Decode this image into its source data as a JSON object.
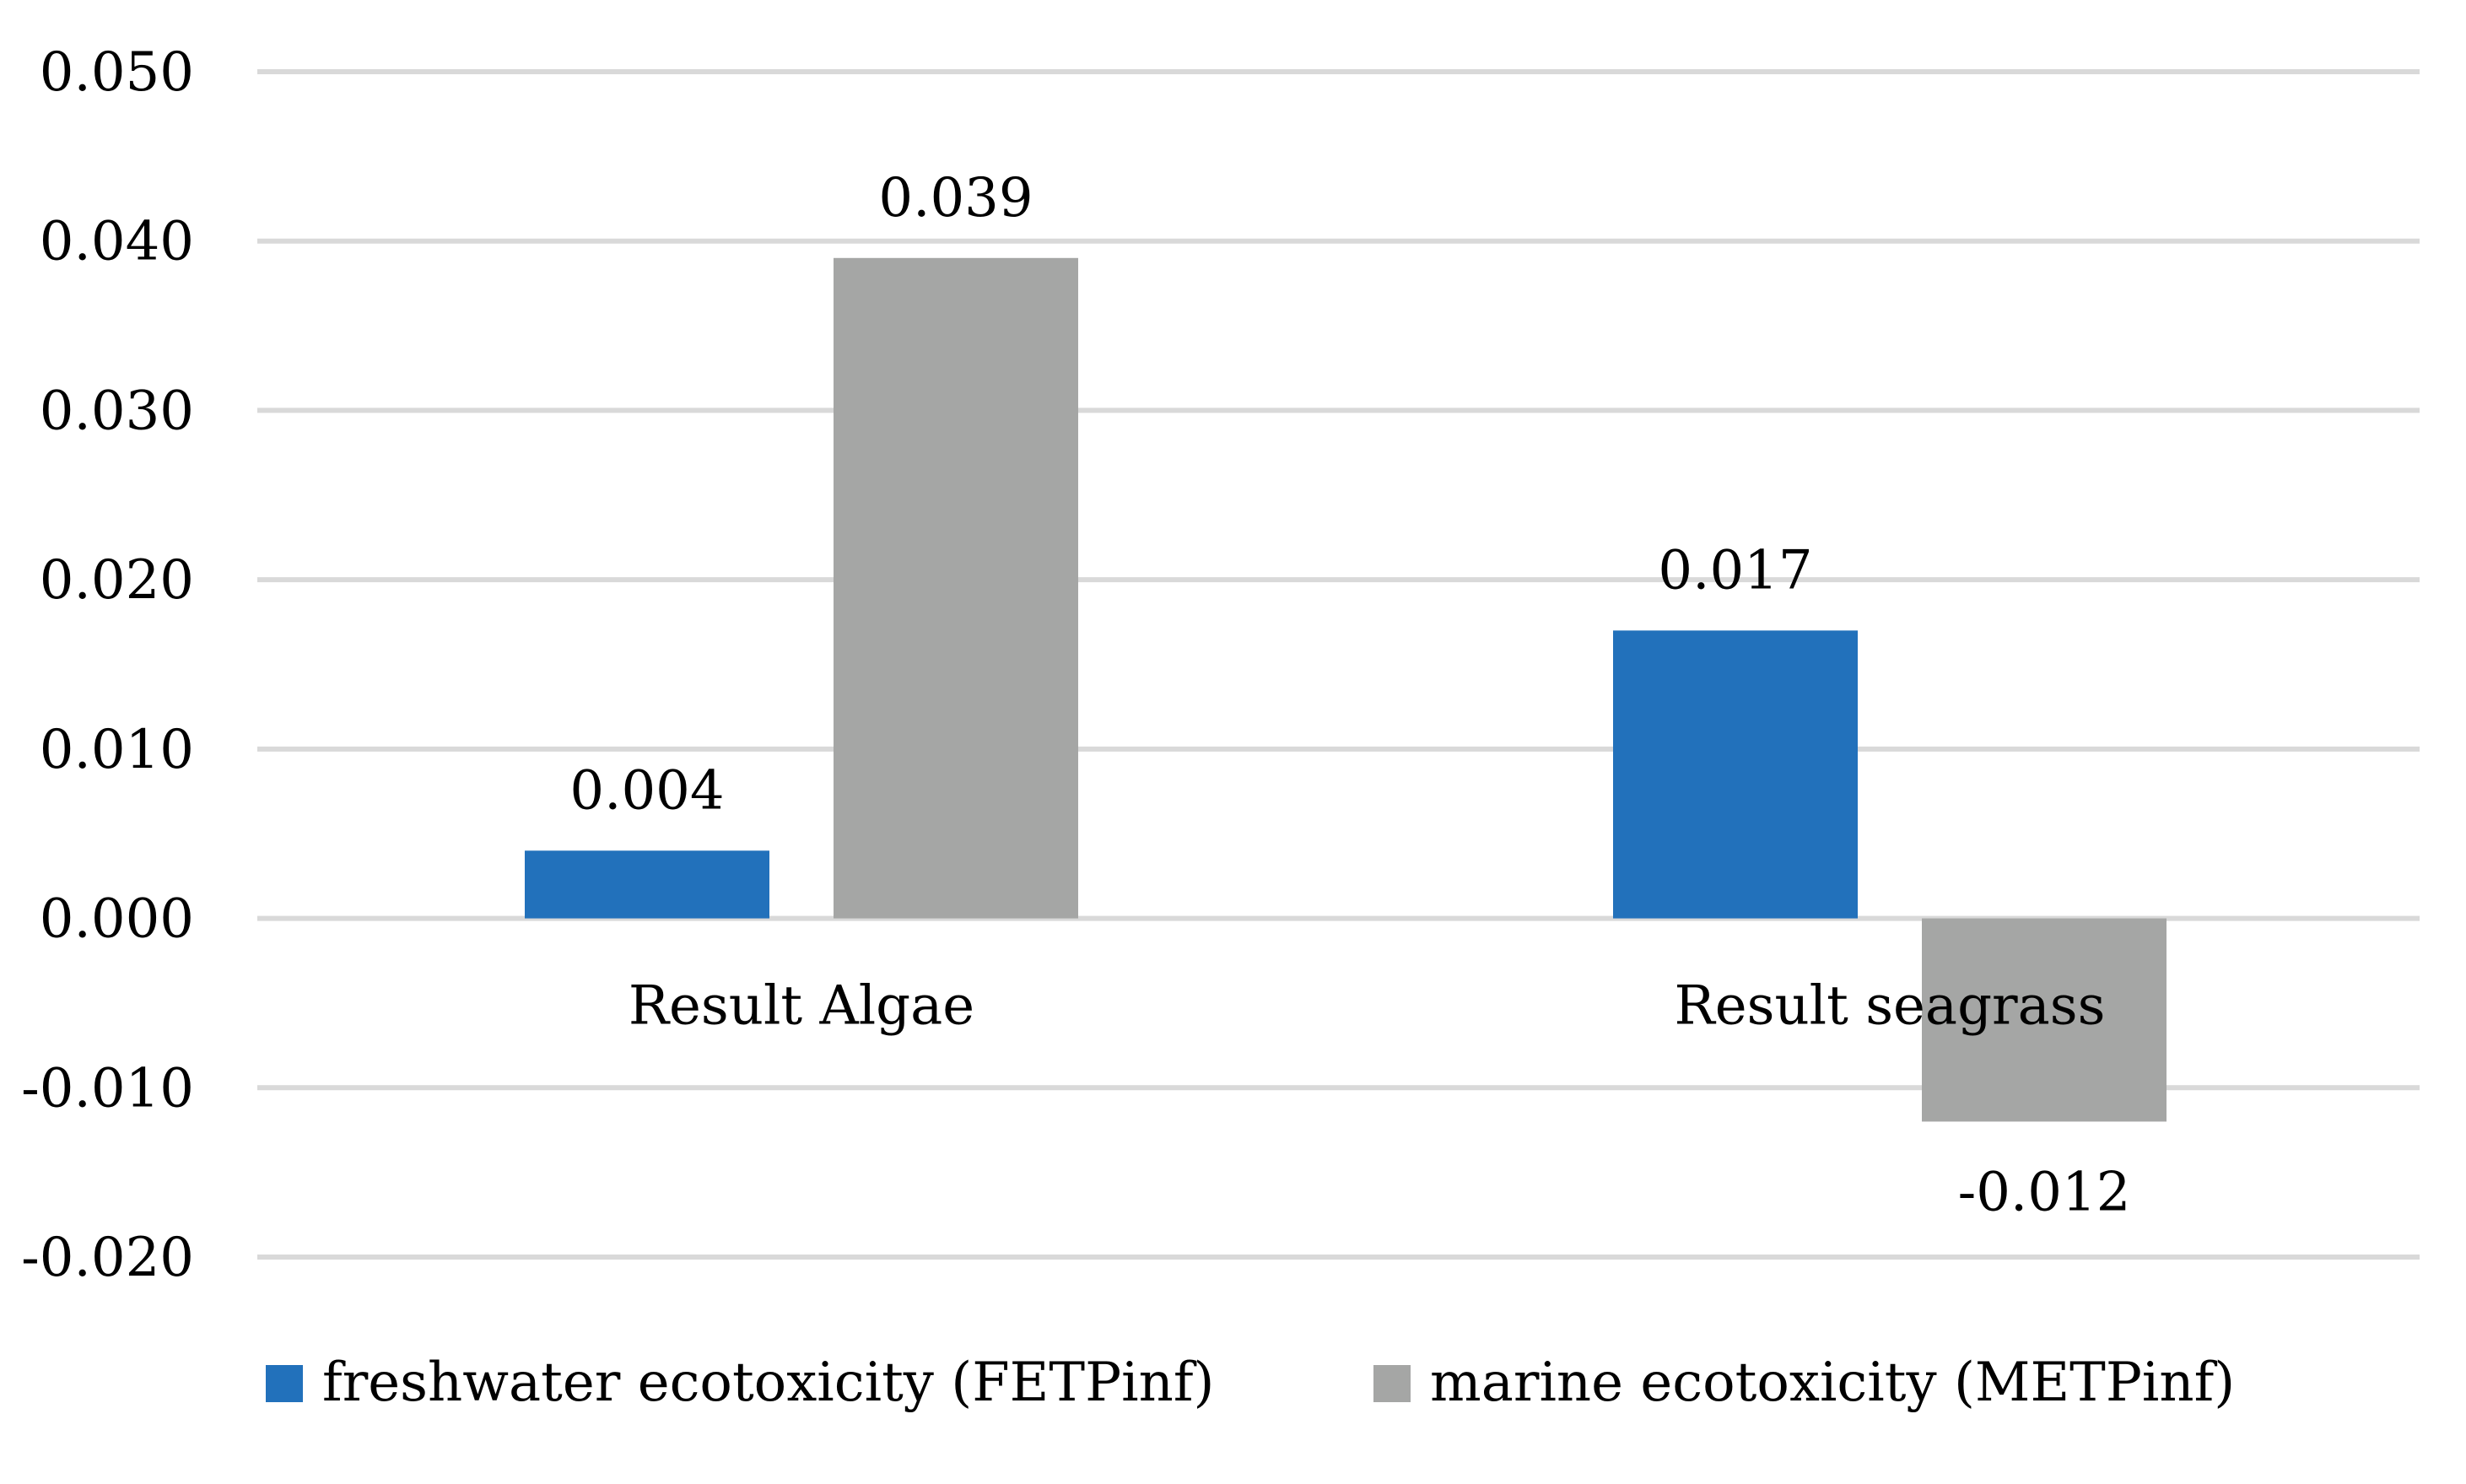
{
  "chart_data": {
    "type": "bar",
    "title": "",
    "xlabel": "",
    "ylabel": "",
    "categories": [
      "Result Algae",
      "Result seagrass"
    ],
    "series": [
      {
        "name": "freshwater ecotoxicity (FETPinf)",
        "color": "#2271bb",
        "values": [
          0.004,
          0.017
        ],
        "labels": [
          "0.004",
          "0.017"
        ]
      },
      {
        "name": "marine ecotoxicity (METPinf)",
        "color": "#a5a6a5",
        "values": [
          0.039,
          -0.012
        ],
        "labels": [
          "0.039",
          "-0.012"
        ]
      }
    ],
    "ylim": [
      -0.02,
      0.05
    ],
    "yticks": [
      0.05,
      0.04,
      0.03,
      0.02,
      0.01,
      0.0,
      -0.01,
      -0.02
    ],
    "ytick_labels": [
      "0.050",
      "0.040",
      "0.030",
      "0.020",
      "0.010",
      "0.000",
      "-0.010",
      "-0.020"
    ],
    "grid": true,
    "legend_position": "bottom-left"
  }
}
